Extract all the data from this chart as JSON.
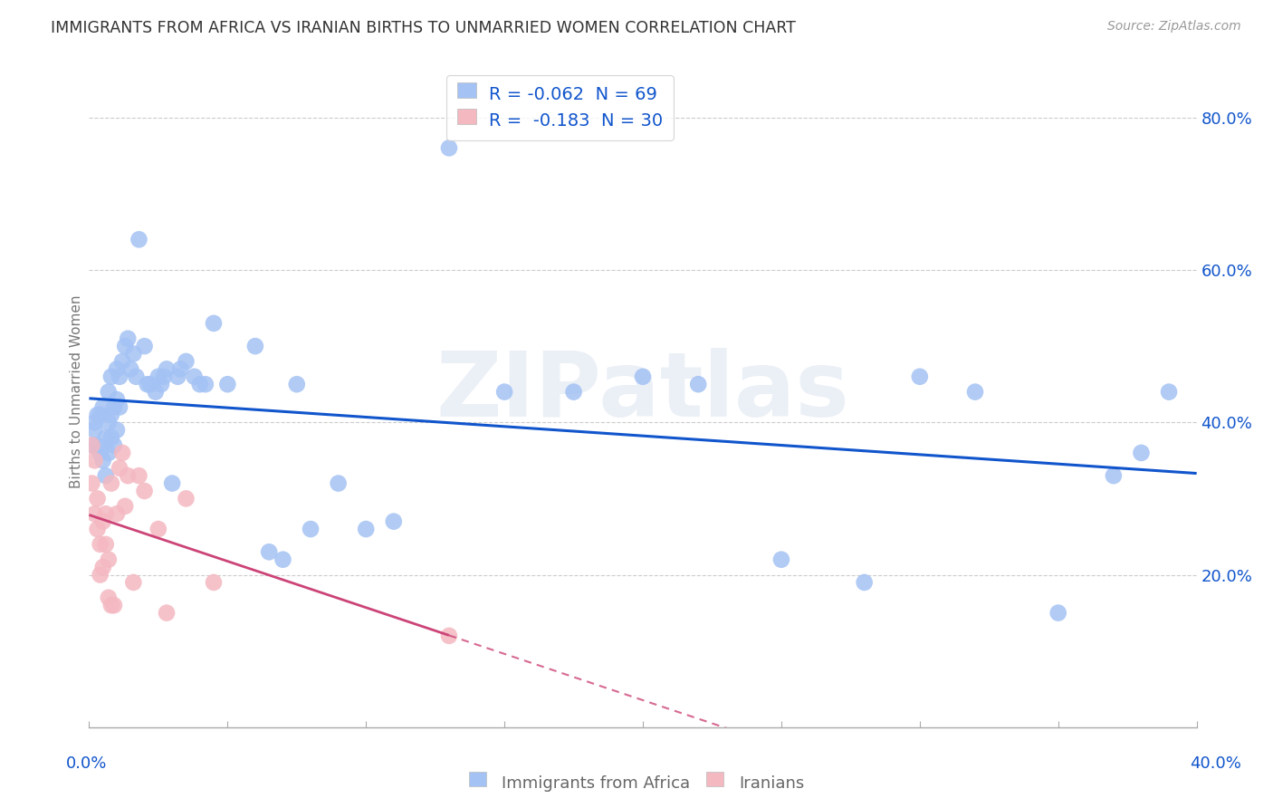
{
  "title": "IMMIGRANTS FROM AFRICA VS IRANIAN BIRTHS TO UNMARRIED WOMEN CORRELATION CHART",
  "source": "Source: ZipAtlas.com",
  "ylabel": "Births to Unmarried Women",
  "ytick_values": [
    0.2,
    0.4,
    0.6,
    0.8
  ],
  "xlim": [
    0.0,
    0.4
  ],
  "ylim": [
    0.0,
    0.88
  ],
  "legend_text_r1": "R = ",
  "legend_val_r1": "-0.062",
  "legend_text_n1": "  N = ",
  "legend_val_n1": "69",
  "legend_text_r2": "R =  ",
  "legend_val_r2": "-0.183",
  "legend_text_n2": "  N = ",
  "legend_val_n2": "30",
  "color_africa": "#a4c2f4",
  "color_iran": "#f4b8c1",
  "color_africa_line": "#1155cc",
  "color_iran_line": "#cc4477",
  "color_text_blue": "#1155cc",
  "color_label": "#666666",
  "watermark": "ZIPatlas",
  "africa_x": [
    0.001,
    0.002,
    0.002,
    0.003,
    0.003,
    0.004,
    0.004,
    0.005,
    0.005,
    0.006,
    0.006,
    0.007,
    0.007,
    0.007,
    0.008,
    0.008,
    0.008,
    0.009,
    0.009,
    0.01,
    0.01,
    0.01,
    0.011,
    0.011,
    0.012,
    0.013,
    0.014,
    0.015,
    0.016,
    0.017,
    0.018,
    0.02,
    0.021,
    0.022,
    0.024,
    0.025,
    0.026,
    0.027,
    0.028,
    0.03,
    0.032,
    0.033,
    0.035,
    0.038,
    0.04,
    0.042,
    0.045,
    0.05,
    0.06,
    0.065,
    0.07,
    0.075,
    0.08,
    0.09,
    0.1,
    0.11,
    0.13,
    0.15,
    0.175,
    0.2,
    0.22,
    0.25,
    0.28,
    0.3,
    0.32,
    0.35,
    0.37,
    0.38,
    0.39
  ],
  "africa_y": [
    0.37,
    0.39,
    0.4,
    0.37,
    0.41,
    0.36,
    0.41,
    0.35,
    0.42,
    0.33,
    0.38,
    0.36,
    0.4,
    0.44,
    0.38,
    0.41,
    0.46,
    0.37,
    0.42,
    0.39,
    0.43,
    0.47,
    0.42,
    0.46,
    0.48,
    0.5,
    0.51,
    0.47,
    0.49,
    0.46,
    0.64,
    0.5,
    0.45,
    0.45,
    0.44,
    0.46,
    0.45,
    0.46,
    0.47,
    0.32,
    0.46,
    0.47,
    0.48,
    0.46,
    0.45,
    0.45,
    0.53,
    0.45,
    0.5,
    0.23,
    0.22,
    0.45,
    0.26,
    0.32,
    0.26,
    0.27,
    0.76,
    0.44,
    0.44,
    0.46,
    0.45,
    0.22,
    0.19,
    0.46,
    0.44,
    0.15,
    0.33,
    0.36,
    0.44
  ],
  "iran_x": [
    0.001,
    0.001,
    0.002,
    0.002,
    0.003,
    0.003,
    0.004,
    0.004,
    0.005,
    0.005,
    0.006,
    0.006,
    0.007,
    0.007,
    0.008,
    0.008,
    0.009,
    0.01,
    0.011,
    0.012,
    0.013,
    0.014,
    0.016,
    0.018,
    0.02,
    0.025,
    0.028,
    0.035,
    0.045,
    0.13
  ],
  "iran_y": [
    0.37,
    0.32,
    0.28,
    0.35,
    0.26,
    0.3,
    0.24,
    0.2,
    0.27,
    0.21,
    0.24,
    0.28,
    0.17,
    0.22,
    0.16,
    0.32,
    0.16,
    0.28,
    0.34,
    0.36,
    0.29,
    0.33,
    0.19,
    0.33,
    0.31,
    0.26,
    0.15,
    0.3,
    0.19,
    0.12
  ]
}
